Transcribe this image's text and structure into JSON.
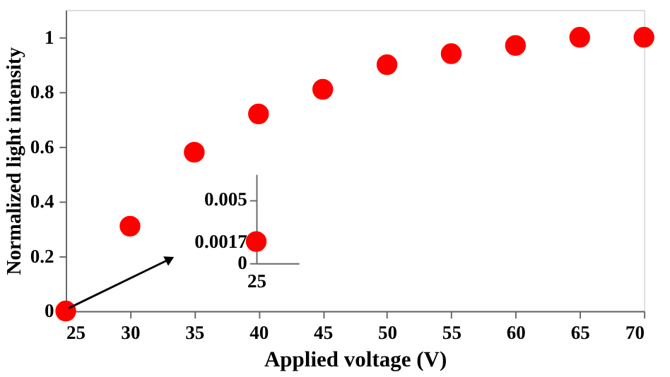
{
  "chart_data": [
    {
      "type": "scatter",
      "xlabel": "Applied  voltage (V)",
      "ylabel": "Normalized light intensity",
      "x": [
        25,
        30,
        35,
        40,
        45,
        50,
        55,
        60,
        65,
        70
      ],
      "values": [
        0,
        0.31,
        0.58,
        0.72,
        0.81,
        0.9,
        0.94,
        0.97,
        1.0,
        1.0
      ],
      "color": "#ff0000",
      "marker": "circle",
      "grid": false,
      "xlim": [
        25,
        70
      ],
      "ylim": [
        0,
        1.1
      ],
      "xticks": [
        25,
        30,
        35,
        40,
        45,
        50,
        55,
        60,
        65,
        70
      ],
      "yticks": [
        0,
        0.2,
        0.4,
        0.6,
        0.8,
        1
      ]
    },
    {
      "type": "scatter",
      "categories": [
        "25"
      ],
      "values": [
        0.0017
      ],
      "color": "#ff0000",
      "marker": "circle",
      "ylim": [
        0,
        0.007
      ],
      "yticks": [
        0,
        0.0017,
        0.005
      ]
    }
  ]
}
